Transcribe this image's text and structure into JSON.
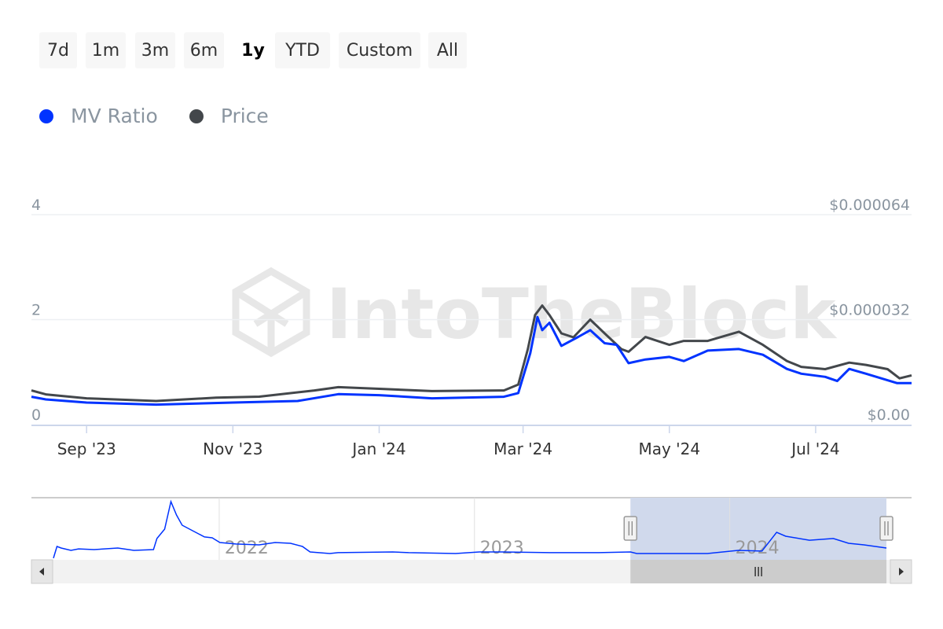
{
  "range_selector": {
    "buttons": [
      "7d",
      "1m",
      "3m",
      "6m",
      "1y",
      "YTD",
      "Custom",
      "All"
    ],
    "selected": "1y"
  },
  "watermark": "IntoTheBlock",
  "colors": {
    "mv_ratio": "#0033ff",
    "price": "#43474b",
    "navigator_mask": "#d0d9ec"
  },
  "chart_data": {
    "type": "line",
    "title": "",
    "legend": {
      "placement": "top-left",
      "entries": [
        "MV Ratio",
        "Price"
      ]
    },
    "grid": true,
    "xlim": [
      "2023-08-09",
      "2024-08-10"
    ],
    "x_ticks": [
      {
        "date": "2023-09-01",
        "label": "Sep '23"
      },
      {
        "date": "2023-11-01",
        "label": "Nov '23"
      },
      {
        "date": "2024-01-01",
        "label": "Jan '24"
      },
      {
        "date": "2024-03-01",
        "label": "Mar '24"
      },
      {
        "date": "2024-05-01",
        "label": "May '24"
      },
      {
        "date": "2024-07-01",
        "label": "Jul '24"
      }
    ],
    "y_left": {
      "range": [
        0,
        4
      ],
      "ticks": [
        {
          "v": 0,
          "label": "0"
        },
        {
          "v": 2,
          "label": "2"
        },
        {
          "v": 4,
          "label": "4"
        }
      ]
    },
    "y_right": {
      "range": [
        0,
        6.4e-05
      ],
      "ticks": [
        {
          "v": 0,
          "label": "$0.00"
        },
        {
          "v": 3.2e-05,
          "label": "$0.000032"
        },
        {
          "v": 6.4e-05,
          "label": "$0.000064"
        }
      ]
    },
    "series": [
      {
        "name": "MV Ratio",
        "axis": "left",
        "points": [
          [
            "2023-08-09",
            0.53
          ],
          [
            "2023-08-15",
            0.48
          ],
          [
            "2023-09-01",
            0.42
          ],
          [
            "2023-09-30",
            0.38
          ],
          [
            "2023-11-01",
            0.42
          ],
          [
            "2023-11-28",
            0.45
          ],
          [
            "2023-12-15",
            0.58
          ],
          [
            "2024-01-01",
            0.56
          ],
          [
            "2024-01-23",
            0.5
          ],
          [
            "2024-02-22",
            0.53
          ],
          [
            "2024-02-28",
            0.6
          ],
          [
            "2024-03-04",
            1.36
          ],
          [
            "2024-03-07",
            2.05
          ],
          [
            "2024-03-09",
            1.8
          ],
          [
            "2024-03-12",
            1.94
          ],
          [
            "2024-03-17",
            1.5
          ],
          [
            "2024-03-24",
            1.67
          ],
          [
            "2024-03-29",
            1.8
          ],
          [
            "2024-04-04",
            1.55
          ],
          [
            "2024-04-09",
            1.52
          ],
          [
            "2024-04-14",
            1.17
          ],
          [
            "2024-04-21",
            1.24
          ],
          [
            "2024-05-01",
            1.29
          ],
          [
            "2024-05-07",
            1.21
          ],
          [
            "2024-05-17",
            1.41
          ],
          [
            "2024-05-30",
            1.44
          ],
          [
            "2024-06-09",
            1.33
          ],
          [
            "2024-06-19",
            1.06
          ],
          [
            "2024-06-25",
            0.97
          ],
          [
            "2024-07-05",
            0.91
          ],
          [
            "2024-07-10",
            0.83
          ],
          [
            "2024-07-15",
            1.06
          ],
          [
            "2024-07-22",
            0.97
          ],
          [
            "2024-08-04",
            0.79
          ],
          [
            "2024-08-10",
            0.79
          ]
        ]
      },
      {
        "name": "Price",
        "axis": "right",
        "points": [
          [
            "2023-08-09",
            1.04e-05
          ],
          [
            "2023-08-15",
            9.2e-06
          ],
          [
            "2023-09-01",
            8e-06
          ],
          [
            "2023-09-30",
            7.2e-06
          ],
          [
            "2023-10-25",
            8.2e-06
          ],
          [
            "2023-11-12",
            8.5e-06
          ],
          [
            "2023-12-05",
            1.04e-05
          ],
          [
            "2023-12-15",
            1.14e-05
          ],
          [
            "2024-01-01",
            1.09e-05
          ],
          [
            "2024-01-23",
            1.02e-05
          ],
          [
            "2024-02-22",
            1.04e-05
          ],
          [
            "2024-02-28",
            1.22e-05
          ],
          [
            "2024-03-03",
            2.3e-05
          ],
          [
            "2024-03-06",
            3.34e-05
          ],
          [
            "2024-03-09",
            3.63e-05
          ],
          [
            "2024-03-12",
            3.34e-05
          ],
          [
            "2024-03-17",
            2.78e-05
          ],
          [
            "2024-03-22",
            2.66e-05
          ],
          [
            "2024-03-29",
            3.2e-05
          ],
          [
            "2024-04-04",
            2.78e-05
          ],
          [
            "2024-04-11",
            2.3e-05
          ],
          [
            "2024-04-14",
            2.22e-05
          ],
          [
            "2024-04-21",
            2.67e-05
          ],
          [
            "2024-05-01",
            2.43e-05
          ],
          [
            "2024-05-07",
            2.55e-05
          ],
          [
            "2024-05-17",
            2.55e-05
          ],
          [
            "2024-05-30",
            2.83e-05
          ],
          [
            "2024-06-09",
            2.43e-05
          ],
          [
            "2024-06-19",
            1.94e-05
          ],
          [
            "2024-06-25",
            1.76e-05
          ],
          [
            "2024-07-05",
            1.69e-05
          ],
          [
            "2024-07-15",
            1.89e-05
          ],
          [
            "2024-07-22",
            1.82e-05
          ],
          [
            "2024-07-31",
            1.69e-05
          ],
          [
            "2024-08-05",
            1.41e-05
          ],
          [
            "2024-08-10",
            1.5e-05
          ]
        ]
      }
    ],
    "navigator": {
      "xlim": [
        "2021-05-09",
        "2024-08-12"
      ],
      "selected_range": [
        "2023-08-12",
        "2024-08-12"
      ],
      "x_ticks": [
        {
          "date": "2022-01-01",
          "label": "2022"
        },
        {
          "date": "2023-01-01",
          "label": "2023"
        },
        {
          "date": "2024-01-01",
          "label": "2024"
        }
      ],
      "points": [
        [
          "2021-05-09",
          0.17
        ],
        [
          "2021-05-14",
          1.0
        ],
        [
          "2021-05-20",
          0.89
        ],
        [
          "2021-06-03",
          0.72
        ],
        [
          "2021-06-14",
          0.83
        ],
        [
          "2021-07-06",
          0.78
        ],
        [
          "2021-08-09",
          0.89
        ],
        [
          "2021-09-01",
          0.72
        ],
        [
          "2021-09-29",
          0.78
        ],
        [
          "2021-10-04",
          1.56
        ],
        [
          "2021-10-15",
          2.22
        ],
        [
          "2021-10-24",
          4.17
        ],
        [
          "2021-11-01",
          3.22
        ],
        [
          "2021-11-09",
          2.5
        ],
        [
          "2021-11-24",
          2.11
        ],
        [
          "2021-12-11",
          1.67
        ],
        [
          "2021-12-22",
          1.61
        ],
        [
          "2022-01-02",
          1.28
        ],
        [
          "2022-01-25",
          1.17
        ],
        [
          "2022-02-27",
          1.11
        ],
        [
          "2022-03-22",
          1.28
        ],
        [
          "2022-04-13",
          1.22
        ],
        [
          "2022-04-30",
          1.0
        ],
        [
          "2022-05-11",
          0.61
        ],
        [
          "2022-06-08",
          0.5
        ],
        [
          "2022-06-20",
          0.56
        ],
        [
          "2022-09-06",
          0.61
        ],
        [
          "2022-09-29",
          0.56
        ],
        [
          "2022-12-05",
          0.5
        ],
        [
          "2023-01-08",
          0.61
        ],
        [
          "2023-02-10",
          0.61
        ],
        [
          "2023-04-19",
          0.56
        ],
        [
          "2023-06-25",
          0.56
        ],
        [
          "2023-08-12",
          0.61
        ],
        [
          "2023-08-21",
          0.5
        ],
        [
          "2023-11-30",
          0.5
        ],
        [
          "2024-01-13",
          0.72
        ],
        [
          "2024-02-16",
          0.67
        ],
        [
          "2024-03-08",
          2.0
        ],
        [
          "2024-03-21",
          1.72
        ],
        [
          "2024-04-24",
          1.44
        ],
        [
          "2024-05-28",
          1.56
        ],
        [
          "2024-06-19",
          1.22
        ],
        [
          "2024-07-11",
          1.11
        ],
        [
          "2024-08-12",
          0.89
        ]
      ]
    }
  }
}
